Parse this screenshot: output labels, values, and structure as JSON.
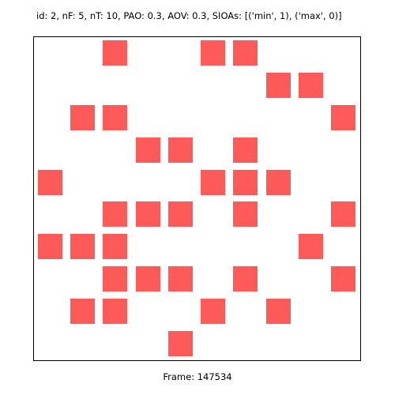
{
  "header": {
    "text": "id: 2, nF: 5, nT: 10, PAO: 0.3, AOV: 0.3, SIOAs: [('min', 1), ('max', 0)]"
  },
  "grid": {
    "rows": 10,
    "cols": 10,
    "cell_color": "#ff5a5a",
    "filled_cells": [
      [
        0,
        2
      ],
      [
        0,
        5
      ],
      [
        0,
        6
      ],
      [
        1,
        7
      ],
      [
        1,
        8
      ],
      [
        2,
        1
      ],
      [
        2,
        2
      ],
      [
        2,
        9
      ],
      [
        3,
        3
      ],
      [
        3,
        4
      ],
      [
        3,
        6
      ],
      [
        4,
        0
      ],
      [
        4,
        5
      ],
      [
        4,
        6
      ],
      [
        4,
        7
      ],
      [
        5,
        2
      ],
      [
        5,
        3
      ],
      [
        5,
        4
      ],
      [
        5,
        6
      ],
      [
        5,
        9
      ],
      [
        6,
        0
      ],
      [
        6,
        1
      ],
      [
        6,
        2
      ],
      [
        6,
        8
      ],
      [
        7,
        2
      ],
      [
        7,
        3
      ],
      [
        7,
        4
      ],
      [
        7,
        6
      ],
      [
        7,
        9
      ],
      [
        8,
        1
      ],
      [
        8,
        2
      ],
      [
        8,
        5
      ],
      [
        8,
        7
      ],
      [
        9,
        4
      ]
    ]
  },
  "footer": {
    "text": "Frame: 147534"
  }
}
